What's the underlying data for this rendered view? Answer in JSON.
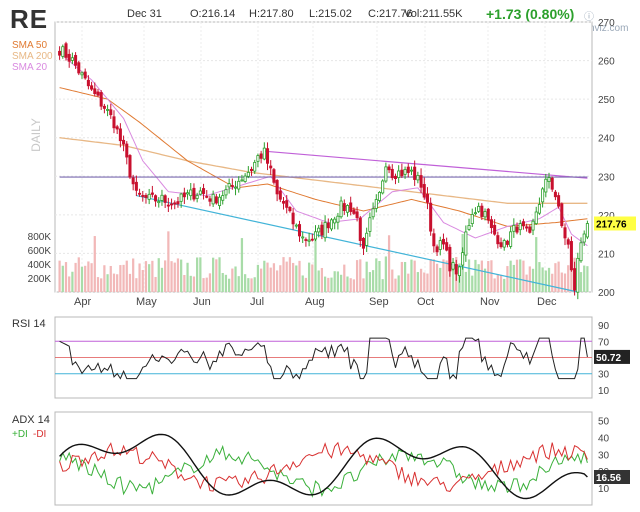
{
  "header": {
    "ticker": "RE",
    "date": "Dec 31",
    "open": "O:216.14",
    "high": "H:217.80",
    "low": "L:215.02",
    "close": "C:217.76",
    "volume": "Vol:211.55K",
    "change": "+1.73 (0.80%)",
    "brand": "finviz.com",
    "brand_icon": "finviz-logo-icon"
  },
  "colors": {
    "up": "#2ca02c",
    "down": "#c8102e",
    "vol_up": "#a8dca8",
    "vol_down": "#f2b8b8",
    "sma50": "#e07a32",
    "sma200": "#e8b886",
    "sma20": "#d98ae0",
    "trend_upper": "#c060d8",
    "trend_lower": "#42b4d8",
    "horizontal": "#7a6ab0",
    "rsi_line": "#222222",
    "rsi_70": "#c060d8",
    "rsi_30": "#42b4d8",
    "rsi_50": "#e05050",
    "adx": "#111111",
    "plus_di": "#3ab03a",
    "minus_di": "#d83030",
    "price_label_bg": "#ffff44",
    "rsi_label_bg": "#222222",
    "adx_label_bg": "#333333"
  },
  "chart_data": [
    {
      "type": "candlestick",
      "title": "",
      "watermark": "DAILY",
      "legend": [
        {
          "name": "SMA 50",
          "color": "#e07a32"
        },
        {
          "name": "SMA 200",
          "color": "#e8b886"
        },
        {
          "name": "SMA 20",
          "color": "#d98ae0"
        }
      ],
      "legend_position": "top-left",
      "x_labels": [
        "Apr",
        "May",
        "Jun",
        "Jul",
        "Aug",
        "Sep",
        "Oct",
        "Nov",
        "Dec"
      ],
      "ylim": [
        200,
        270
      ],
      "y_ticks": [
        200,
        210,
        220,
        230,
        240,
        250,
        260,
        270
      ],
      "last_price": "217.76",
      "last_value": 217.76,
      "volume_ticks": [
        "800K",
        "600K",
        "400K",
        "200K"
      ],
      "volume_max": 1000000,
      "waypoints": [
        [
          0,
          263
        ],
        [
          4,
          260
        ],
        [
          7,
          256
        ],
        [
          10,
          252
        ],
        [
          14,
          248
        ],
        [
          17,
          244
        ],
        [
          20,
          237
        ],
        [
          22,
          231
        ],
        [
          24,
          225
        ],
        [
          28,
          224
        ],
        [
          32,
          224
        ],
        [
          36,
          223
        ],
        [
          40,
          225
        ],
        [
          44,
          226
        ],
        [
          48,
          224
        ],
        [
          52,
          226
        ],
        [
          56,
          229
        ],
        [
          60,
          232
        ],
        [
          62,
          235
        ],
        [
          64,
          236
        ],
        [
          66,
          231
        ],
        [
          68,
          225
        ],
        [
          70,
          223
        ],
        [
          73,
          218
        ],
        [
          76,
          214
        ],
        [
          79,
          214
        ],
        [
          82,
          216
        ],
        [
          85,
          219
        ],
        [
          88,
          222
        ],
        [
          91,
          222
        ],
        [
          93,
          219
        ],
        [
          95,
          210
        ],
        [
          97,
          218
        ],
        [
          100,
          225
        ],
        [
          102,
          234
        ],
        [
          104,
          231
        ],
        [
          107,
          231
        ],
        [
          110,
          231
        ],
        [
          113,
          228
        ],
        [
          115,
          222
        ],
        [
          117,
          212
        ],
        [
          120,
          212
        ],
        [
          122,
          207
        ],
        [
          125,
          205
        ],
        [
          127,
          215
        ],
        [
          129,
          221
        ],
        [
          131,
          222
        ],
        [
          133,
          220
        ],
        [
          135,
          216
        ],
        [
          137,
          214
        ],
        [
          139,
          212
        ],
        [
          141,
          215
        ],
        [
          143,
          217
        ],
        [
          145,
          216
        ],
        [
          147,
          214
        ],
        [
          149,
          221
        ],
        [
          151,
          226
        ],
        [
          153,
          230
        ],
        [
          155,
          225
        ],
        [
          157,
          217
        ],
        [
          159,
          212
        ],
        [
          160,
          205
        ],
        [
          161,
          201
        ],
        [
          162,
          208
        ],
        [
          163,
          213
        ],
        [
          164,
          216
        ],
        [
          165,
          217.76
        ]
      ],
      "trendlines": [
        {
          "name": "upper",
          "from": [
            64,
            236.5
          ],
          "to": [
            165,
            229.5
          ]
        },
        {
          "name": "lower",
          "from": [
            24,
            225
          ],
          "to": [
            162,
            200
          ]
        },
        {
          "name": "horizontal",
          "from": [
            0,
            229.8
          ],
          "to": [
            165,
            229.8
          ]
        }
      ],
      "sma20_waypoints": [
        [
          0,
          262
        ],
        [
          10,
          255
        ],
        [
          20,
          245
        ],
        [
          26,
          234
        ],
        [
          34,
          226
        ],
        [
          46,
          225
        ],
        [
          58,
          228
        ],
        [
          66,
          230
        ],
        [
          74,
          221
        ],
        [
          84,
          218
        ],
        [
          94,
          219
        ],
        [
          104,
          226
        ],
        [
          112,
          227
        ],
        [
          120,
          218
        ],
        [
          130,
          214
        ],
        [
          140,
          217
        ],
        [
          150,
          219
        ],
        [
          156,
          222
        ],
        [
          160,
          215
        ],
        [
          165,
          212
        ]
      ],
      "sma50_waypoints": [
        [
          0,
          253
        ],
        [
          15,
          250
        ],
        [
          25,
          244
        ],
        [
          40,
          234
        ],
        [
          55,
          227
        ],
        [
          65,
          228
        ],
        [
          80,
          224
        ],
        [
          95,
          221
        ],
        [
          110,
          224
        ],
        [
          125,
          221
        ],
        [
          140,
          217
        ],
        [
          155,
          218
        ],
        [
          165,
          219
        ]
      ],
      "sma200_waypoints": [
        [
          0,
          240
        ],
        [
          20,
          238
        ],
        [
          40,
          234
        ],
        [
          60,
          231
        ],
        [
          80,
          229
        ],
        [
          100,
          227
        ],
        [
          120,
          225
        ],
        [
          140,
          223
        ],
        [
          165,
          223
        ]
      ]
    },
    {
      "type": "line",
      "title": "RSI 14",
      "ylim": [
        0,
        100
      ],
      "y_ticks": [
        10,
        30,
        50,
        70,
        90
      ],
      "levels": [
        30,
        50,
        70
      ],
      "last_value": "50.72"
    },
    {
      "type": "line",
      "title": "ADX 14",
      "series": [
        {
          "name": "+DI",
          "color": "#3ab03a"
        },
        {
          "name": "-DI",
          "color": "#d83030"
        },
        {
          "name": "ADX 14",
          "color": "#111111"
        }
      ],
      "ylim": [
        0,
        55
      ],
      "y_ticks": [
        10,
        20,
        30,
        40,
        50
      ],
      "last_value": "16.56"
    }
  ]
}
